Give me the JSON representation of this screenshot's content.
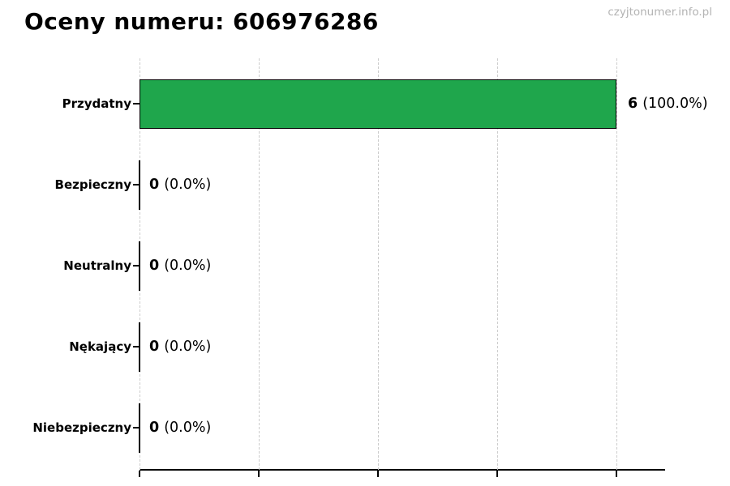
{
  "page": {
    "title": "Oceny numeru: 606976286",
    "watermark": "czyjtonumer.info.pl"
  },
  "chart_data": {
    "type": "bar",
    "orientation": "horizontal",
    "title": "Oceny numeru: 606976286",
    "categories": [
      "Przydatny",
      "Bezpieczny",
      "Neutralny",
      "Nękający",
      "Niebezpieczny"
    ],
    "values": [
      6,
      0,
      0,
      0,
      0
    ],
    "value_number_labels": [
      "6",
      "0",
      "0",
      "0",
      "0"
    ],
    "percent_labels": [
      "(100.0%)",
      "(0.0%)",
      "(0.0%)",
      "(0.0%)",
      "(0.0%)"
    ],
    "xlim": [
      0,
      6.6
    ],
    "x_gridlines": [
      0,
      1.5,
      3,
      4.5,
      6
    ],
    "grid": "vertical-dashed",
    "legend": "none",
    "bar_color": "#1fa64c",
    "bar_edge_color": "#000000",
    "gridline_color": "#cccccc",
    "axis_color": "#000000",
    "watermark": "czyjtonumer.info.pl"
  }
}
